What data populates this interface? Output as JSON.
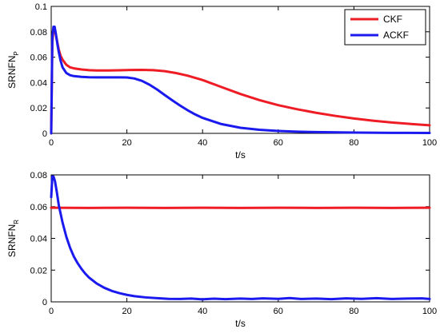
{
  "chart_data": [
    {
      "type": "line",
      "title": "",
      "xlabel": "t/s",
      "ylabel": "SRNFN",
      "ylabel_sub": "P",
      "xlim": [
        0,
        100
      ],
      "ylim": [
        0,
        0.1
      ],
      "xticks": [
        0,
        20,
        40,
        60,
        80,
        100
      ],
      "xtick_labels": [
        "0",
        "20",
        "40",
        "60",
        "80",
        "100"
      ],
      "yticks": [
        0,
        0.02,
        0.04,
        0.06,
        0.08,
        0.1
      ],
      "ytick_labels": [
        "0",
        "0.02",
        "0.04",
        "0.06",
        "0.08",
        "0.1"
      ],
      "grid": false,
      "legend": "top-right",
      "series": [
        {
          "name": "CKF",
          "color": "#ee1c24",
          "x": [
            0,
            0.3,
            0.6,
            0.9,
            1.2,
            1.6,
            2,
            2.5,
            3,
            4,
            5,
            6,
            8,
            10,
            12,
            15,
            18,
            21,
            24,
            27,
            30,
            33,
            36,
            40,
            45,
            50,
            55,
            60,
            65,
            70,
            75,
            80,
            85,
            90,
            95,
            100
          ],
          "y": [
            0,
            0.072,
            0.082,
            0.082,
            0.078,
            0.072,
            0.066,
            0.061,
            0.058,
            0.054,
            0.052,
            0.0512,
            0.0503,
            0.0498,
            0.0495,
            0.0495,
            0.0497,
            0.0499,
            0.05,
            0.0498,
            0.049,
            0.0475,
            0.0455,
            0.042,
            0.0365,
            0.031,
            0.0262,
            0.0222,
            0.019,
            0.0162,
            0.0138,
            0.0117,
            0.01,
            0.0086,
            0.0074,
            0.0064
          ]
        },
        {
          "name": "ACKF",
          "color": "#1a1aee",
          "x": [
            0,
            0.3,
            0.6,
            0.9,
            1.2,
            1.6,
            2,
            2.5,
            3,
            4,
            5,
            6,
            8,
            10,
            12,
            15,
            18,
            20,
            22,
            24,
            26,
            28,
            30,
            32,
            34,
            36,
            38,
            40,
            45,
            50,
            55,
            60,
            65,
            70,
            80,
            90,
            100
          ],
          "y": [
            0,
            0.076,
            0.084,
            0.084,
            0.079,
            0.071,
            0.064,
            0.057,
            0.052,
            0.0475,
            0.0458,
            0.0451,
            0.0445,
            0.0442,
            0.0441,
            0.0441,
            0.0441,
            0.044,
            0.0432,
            0.0413,
            0.0383,
            0.0345,
            0.0302,
            0.026,
            0.022,
            0.0183,
            0.015,
            0.0122,
            0.0073,
            0.0044,
            0.0028,
            0.0019,
            0.0013,
            0.001,
            0.0006,
            0.0004,
            0.0003
          ]
        }
      ]
    },
    {
      "type": "line",
      "title": "",
      "xlabel": "t/s",
      "ylabel": "SRNFN",
      "ylabel_sub": "R",
      "xlim": [
        0,
        100
      ],
      "ylim": [
        0,
        0.08
      ],
      "xticks": [
        0,
        20,
        40,
        60,
        80,
        100
      ],
      "xtick_labels": [
        "0",
        "20",
        "40",
        "60",
        "80",
        "100"
      ],
      "yticks": [
        0,
        0.02,
        0.04,
        0.06,
        0.08
      ],
      "ytick_labels": [
        "0",
        "0.02",
        "0.04",
        "0.06",
        "0.08"
      ],
      "grid": false,
      "series": [
        {
          "name": "CKF",
          "color": "#ee1c24",
          "x": [
            0,
            10,
            20,
            30,
            40,
            50,
            60,
            70,
            80,
            90,
            100
          ],
          "y": [
            0.0593,
            0.0592,
            0.0593,
            0.0592,
            0.0593,
            0.0592,
            0.0593,
            0.0592,
            0.0593,
            0.0592,
            0.0593
          ]
        },
        {
          "name": "ACKF",
          "color": "#1a1aee",
          "x": [
            0,
            0.3,
            0.6,
            1,
            1.5,
            2,
            3,
            4,
            5,
            6,
            7,
            8,
            9,
            10,
            12,
            14,
            16,
            18,
            20,
            22,
            25,
            28,
            31,
            34,
            37,
            40,
            43,
            46,
            50,
            53,
            56,
            60,
            63,
            66,
            70,
            74,
            78,
            82,
            86,
            90,
            94,
            98,
            100
          ],
          "y": [
            0.066,
            0.079,
            0.079,
            0.076,
            0.069,
            0.061,
            0.05,
            0.041,
            0.034,
            0.0285,
            0.0243,
            0.0208,
            0.0178,
            0.0153,
            0.0116,
            0.0089,
            0.0069,
            0.0055,
            0.0044,
            0.0036,
            0.0028,
            0.0023,
            0.0019,
            0.0018,
            0.0021,
            0.0016,
            0.002,
            0.0017,
            0.0021,
            0.0018,
            0.0022,
            0.0019,
            0.0024,
            0.0018,
            0.0021,
            0.0017,
            0.0022,
            0.0019,
            0.0023,
            0.0018,
            0.0021,
            0.0022,
            0.0018
          ]
        }
      ]
    }
  ]
}
